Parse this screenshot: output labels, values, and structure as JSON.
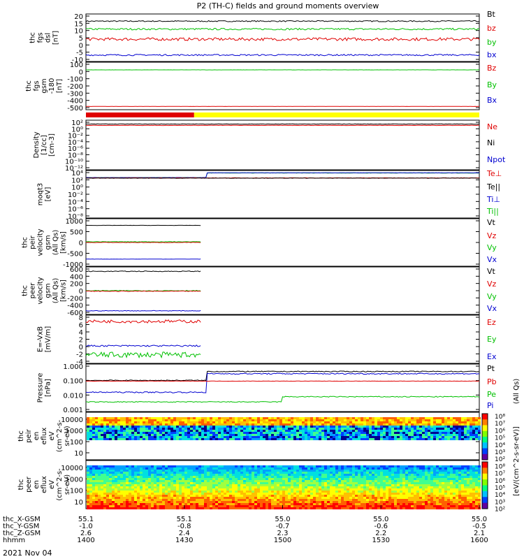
{
  "title": "P2 (TH-C) fields and ground moments overview",
  "date_label": "2021 Nov 04",
  "colors": {
    "black": "#000000",
    "red": "#e00000",
    "green": "#00c000",
    "blue": "#0000d0",
    "yellow": "#ffff00"
  },
  "chart_data": [
    {
      "type": "line",
      "panel": "fgs-dsl",
      "ylabel": [
        "thc",
        "fgs",
        "dsl",
        "[nT]"
      ],
      "yticks": [
        "20",
        "15",
        "10",
        "5",
        "0",
        "-5",
        "-10"
      ],
      "ylim": [
        -12,
        21
      ],
      "legend": [
        {
          "name": "Bt",
          "color": "#000000"
        },
        {
          "name": "bz",
          "color": "#e00000"
        },
        {
          "name": "by",
          "color": "#00c000"
        },
        {
          "name": "bx",
          "color": "#0000d0"
        }
      ],
      "series": [
        {
          "name": "Bt",
          "color": "#000000",
          "x_start_min": 0,
          "x_end_min": 120,
          "level": 16,
          "noise": 0.4
        },
        {
          "name": "by",
          "color": "#00c000",
          "x_start_min": 0,
          "x_end_min": 120,
          "level": 10.5,
          "noise": 0.6
        },
        {
          "name": "bz",
          "color": "#e00000",
          "x_start_min": 0,
          "x_end_min": 120,
          "level": 3.5,
          "noise": 1.0
        },
        {
          "name": "bx",
          "color": "#0000d0",
          "x_start_min": 0,
          "x_end_min": 120,
          "level": -7.5,
          "noise": 0.5
        }
      ]
    },
    {
      "type": "line",
      "panel": "fgs-gsm",
      "ylabel": [
        "thc",
        "fgs",
        "gsm",
        "-180",
        "[nT]"
      ],
      "yticks": [
        "100",
        "0",
        "-100",
        "-200",
        "-300",
        "-400",
        "-500"
      ],
      "ylim": [
        -540,
        110
      ],
      "legend": [
        {
          "name": "Bz",
          "color": "#e00000"
        },
        {
          "name": "By",
          "color": "#00c000"
        },
        {
          "name": "Bx",
          "color": "#0000d0"
        }
      ],
      "series": [
        {
          "name": "By",
          "color": "#00c000",
          "x_start_min": 0,
          "x_end_min": 120,
          "level": 5,
          "noise": 1
        },
        {
          "name": "Bz",
          "color": "#e00000",
          "x_start_min": 0,
          "x_end_min": 120,
          "level": -495,
          "noise": 1
        }
      ]
    },
    {
      "type": "line",
      "panel": "density",
      "ylabel": [
        "Density",
        "[1/cc]",
        "[cm-3]"
      ],
      "yticks": [
        "10^2",
        "10^0",
        "10^-2",
        "10^-4",
        "10^-6",
        "10^-8",
        "10^-10",
        "10^-12"
      ],
      "ylim": [
        -13,
        2.4
      ],
      "log": true,
      "legend": [
        {
          "name": "Ne",
          "color": "#e00000"
        },
        {
          "name": "Ni",
          "color": "#000000"
        },
        {
          "name": "Npot",
          "color": "#0000d0"
        }
      ],
      "series": [
        {
          "name": "Ni",
          "color": "#000000",
          "x_start_min": 0,
          "x_end_min": 120,
          "level": 1.2,
          "noise": 0.05
        },
        {
          "name": "Ne",
          "color": "#e00000",
          "x_start_min": 0,
          "x_end_min": 120,
          "level": 0.8,
          "noise": 0.05
        }
      ]
    },
    {
      "type": "line",
      "panel": "temperature",
      "ylabel": [
        "moqt3",
        "[eV]"
      ],
      "yticks": [
        "10^4",
        "10^2",
        "10^0",
        "10^-2",
        "10^-4",
        "10^-6",
        "10^-8"
      ],
      "ylim": [
        -9,
        4.4
      ],
      "log": true,
      "legend": [
        {
          "name": "Te⊥",
          "color": "#e00000"
        },
        {
          "name": "Te||",
          "color": "#000000"
        },
        {
          "name": "Ti⊥",
          "color": "#0000d0"
        },
        {
          "name": "Ti||",
          "color": "#00c000"
        }
      ],
      "series": [
        {
          "name": "Ti||",
          "color": "#00c000",
          "x_start_min": 0,
          "x_end_min": 120,
          "pre": 2.4,
          "step_min": 37,
          "post": 3.7,
          "noise": 0.03
        },
        {
          "name": "Ti⊥",
          "color": "#0000d0",
          "x_start_min": 0,
          "x_end_min": 120,
          "pre": 2.4,
          "step_min": 37,
          "post": 3.75,
          "noise": 0.03
        },
        {
          "name": "Te⊥",
          "color": "#e00000",
          "x_start_min": 0,
          "x_end_min": 120,
          "level": 2.3,
          "noise": 0.05
        },
        {
          "name": "Te||",
          "color": "#000000",
          "x_start_min": 0,
          "x_end_min": 120,
          "level": 2.25,
          "noise": 0.05
        }
      ]
    },
    {
      "type": "line",
      "panel": "peir-velocity",
      "ylabel": [
        "thc",
        "peir",
        "velocity",
        "gsm",
        "(All Qs)",
        "[km/s]"
      ],
      "yticks": [
        "1000",
        "500",
        "0",
        "-500",
        "-1000"
      ],
      "ylim": [
        -1000,
        1000
      ],
      "legend": [
        {
          "name": "Vt",
          "color": "#000000"
        },
        {
          "name": "Vz",
          "color": "#e00000"
        },
        {
          "name": "Vy",
          "color": "#00c000"
        },
        {
          "name": "Vx",
          "color": "#0000d0"
        }
      ],
      "series": [
        {
          "name": "Vt",
          "color": "#000000",
          "x_start_min": 0,
          "x_end_min": 35,
          "level": 720,
          "noise": 5
        },
        {
          "name": "Vy",
          "color": "#00c000",
          "x_start_min": 0,
          "x_end_min": 35,
          "level": 30,
          "noise": 10
        },
        {
          "name": "Vz",
          "color": "#e00000",
          "x_start_min": 0,
          "x_end_min": 35,
          "level": 0,
          "noise": 8
        },
        {
          "name": "Vx",
          "color": "#0000d0",
          "x_start_min": 0,
          "x_end_min": 35,
          "level": -700,
          "noise": 5
        }
      ]
    },
    {
      "type": "line",
      "panel": "peer-velocity",
      "ylabel": [
        "thc",
        "peer",
        "velocity",
        "gsm",
        "(All Qs)",
        "[km/s]"
      ],
      "yticks": [
        "600",
        "400",
        "200",
        "0",
        "-200",
        "-400",
        "-600"
      ],
      "ylim": [
        -640,
        660
      ],
      "legend": [
        {
          "name": "Vt",
          "color": "#000000"
        },
        {
          "name": "Vz",
          "color": "#e00000"
        },
        {
          "name": "Vy",
          "color": "#00c000"
        },
        {
          "name": "Vx",
          "color": "#0000d0"
        }
      ],
      "series": [
        {
          "name": "Vt",
          "color": "#000000",
          "x_start_min": 0,
          "x_end_min": 35,
          "level": 540,
          "noise": 10
        },
        {
          "name": "Vy",
          "color": "#00c000",
          "x_start_min": 0,
          "x_end_min": 35,
          "level": 10,
          "noise": 10
        },
        {
          "name": "Vz",
          "color": "#e00000",
          "x_start_min": 0,
          "x_end_min": 35,
          "level": -5,
          "noise": 8
        },
        {
          "name": "Vx",
          "color": "#0000d0",
          "x_start_min": 0,
          "x_end_min": 35,
          "level": -540,
          "noise": 8
        }
      ]
    },
    {
      "type": "line",
      "panel": "efield",
      "ylabel": [
        "E=-VxB",
        "[mV/m]"
      ],
      "yticks": [
        "8",
        "6",
        "4",
        "2",
        "0",
        "-2",
        "-4"
      ],
      "ylim": [
        -4.2,
        8.2
      ],
      "legend": [
        {
          "name": "Ez",
          "color": "#e00000"
        },
        {
          "name": "Ey",
          "color": "#00c000"
        },
        {
          "name": "Ex",
          "color": "#0000d0"
        }
      ],
      "series": [
        {
          "name": "Ez",
          "color": "#e00000",
          "x_start_min": 0,
          "x_end_min": 35,
          "level": 6.6,
          "noise": 0.4
        },
        {
          "name": "Ex",
          "color": "#0000d0",
          "x_start_min": 0,
          "x_end_min": 35,
          "level": 0.3,
          "noise": 0.2
        },
        {
          "name": "Ey",
          "color": "#00c000",
          "x_start_min": 0,
          "x_end_min": 35,
          "level": -2,
          "noise": 0.7
        }
      ]
    },
    {
      "type": "line",
      "panel": "pressure",
      "ylabel": [
        "Pressure",
        "[nPa]"
      ],
      "yticks": [
        "1.000",
        "0.100",
        "0.010",
        "0.001"
      ],
      "ylim": [
        -3.1,
        0.1
      ],
      "log": true,
      "legend": [
        {
          "name": "Pt",
          "color": "#000000"
        },
        {
          "name": "Pb",
          "color": "#e00000"
        },
        {
          "name": "Pe",
          "color": "#00c000"
        },
        {
          "name": "Pi",
          "color": "#0000d0"
        }
      ],
      "series": [
        {
          "name": "Pt",
          "color": "#000000",
          "x_start_min": 0,
          "x_end_min": 120,
          "pre": -1.0,
          "step_min": 37,
          "post": -0.4,
          "noise": 0.03
        },
        {
          "name": "Pi",
          "color": "#0000d0",
          "x_start_min": 0,
          "x_end_min": 120,
          "pre": -1.8,
          "step_min": 37,
          "post": -0.55,
          "noise": 0.04
        },
        {
          "name": "Pb",
          "color": "#e00000",
          "x_start_min": 0,
          "x_end_min": 120,
          "level": -1.05,
          "noise": 0.01
        },
        {
          "name": "Pe",
          "color": "#00c000",
          "x_start_min": 0,
          "x_end_min": 120,
          "pre": -2.45,
          "step_min": 60,
          "post": -2.1,
          "noise": 0.03
        }
      ]
    },
    {
      "type": "heatmap",
      "panel": "peir-eflux",
      "ylabel": [
        "thc",
        "peir",
        "en",
        "eflux",
        "eV",
        "(cm^2-s-",
        "sr-eV)"
      ],
      "yticks": [
        "10000",
        "1000",
        "100",
        "10"
      ],
      "log": true
    },
    {
      "type": "heatmap",
      "panel": "peer-eflux",
      "ylabel": [
        "thc",
        "peer",
        "en",
        "eflux",
        "eV",
        "(cm^2-s-",
        "sr-eV)"
      ],
      "yticks": [
        "10000",
        "1000",
        "100",
        "10"
      ],
      "log": true
    }
  ],
  "colorbar": {
    "ticks": [
      "10^8",
      "10^7",
      "10^6",
      "10^5",
      "10^4",
      "10^3",
      "10^2",
      "10^8",
      "10^7",
      "10^6",
      "10^5",
      "10^4",
      "10^3",
      "10^2"
    ],
    "label": "[eV/(cm^2-s-sr-eV)]",
    "label2": "(All Qs)"
  },
  "mode_bar": {
    "red_until_min": 33,
    "colors": [
      "#e00000",
      "#ffff00"
    ]
  },
  "x_axis": {
    "range_min": [
      0,
      120
    ],
    "rows": [
      {
        "label": "thc_X-GSM",
        "values": [
          "55.1",
          "55.1",
          "55.0",
          "55.0",
          "55.0"
        ]
      },
      {
        "label": "thc_Y-GSM",
        "values": [
          "-1.0",
          "-0.8",
          "-0.7",
          "-0.6",
          "-0.5"
        ]
      },
      {
        "label": "thc_Z-GSM",
        "values": [
          "2.6",
          "2.4",
          "2.3",
          "2.2",
          "2.1"
        ]
      },
      {
        "label": "hhmm",
        "values": [
          "1400",
          "1430",
          "1500",
          "1530",
          "1600"
        ]
      }
    ]
  }
}
